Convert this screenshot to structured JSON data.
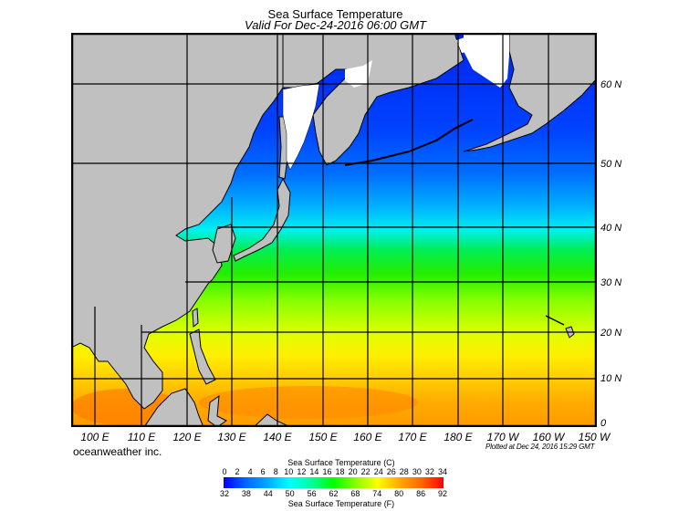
{
  "header": {
    "title": "Sea Surface Temperature",
    "subtitle": "Valid For Dec-24-2016 06:00 GMT"
  },
  "map": {
    "longitude_labels": [
      "100 E",
      "110 E",
      "120 E",
      "130 E",
      "140 E",
      "150 E",
      "160 E",
      "170 E",
      "180 E",
      "170 W",
      "160 W",
      "150 W"
    ],
    "latitude_labels": [
      "60 N",
      "50 N",
      "40 N",
      "30 N",
      "20 N",
      "10 N",
      "0"
    ],
    "colors": {
      "land": "#c0c0c0",
      "ice": "#ffffff",
      "coast": "#000000",
      "grid": "#000000"
    }
  },
  "footer": {
    "credit": "oceanweather inc.",
    "plotted": "Plotted at Dec 24, 2016 15:29 GMT"
  },
  "colorbar": {
    "title_c": "Sea Surface Temperature (C)",
    "title_f": "Sea Surface Temperature (F)",
    "celsius_ticks": [
      "0",
      "2",
      "4",
      "6",
      "8",
      "10",
      "12",
      "14",
      "16",
      "18",
      "20",
      "22",
      "24",
      "26",
      "28",
      "30",
      "32",
      "34"
    ],
    "fahrenheit_ticks": [
      "32",
      "38",
      "44",
      "50",
      "56",
      "62",
      "68",
      "74",
      "80",
      "86",
      "92"
    ],
    "gradient_colors": [
      "#0000ff",
      "#0066ff",
      "#00aaff",
      "#00ffff",
      "#00ff99",
      "#00ff00",
      "#88ff00",
      "#ffff00",
      "#ffaa00",
      "#ff6600",
      "#ff0000"
    ]
  }
}
